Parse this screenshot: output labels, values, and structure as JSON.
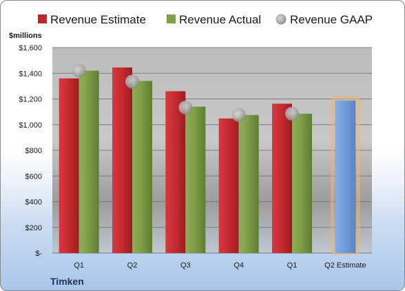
{
  "company": "Timken",
  "colors": {
    "estimate": "#c0272d",
    "actual": "#7fa04a",
    "gaap": "#a8a8a8",
    "q2_estimate": "#6f9bd8",
    "q2_estimate_glow": "#f6b26b"
  },
  "chart_data": {
    "type": "bar",
    "ylabel": "$millions",
    "ylim": [
      0,
      1600
    ],
    "yticks": [
      0,
      200,
      400,
      600,
      800,
      1000,
      1200,
      1400,
      1600
    ],
    "ytick_labels": [
      "$-",
      "$200",
      "$400",
      "$600",
      "$800",
      "$1,000",
      "$1,200",
      "$1,400",
      "$1,600"
    ],
    "categories": [
      "Q1",
      "Q2",
      "Q3",
      "Q4",
      "Q1",
      "Q2 Estimate"
    ],
    "legend_position": "top",
    "series": [
      {
        "name": "Revenue Estimate",
        "values": [
          1360,
          1445,
          1260,
          1048,
          1163,
          null
        ]
      },
      {
        "name": "Revenue Actual",
        "values": [
          1420,
          1340,
          1140,
          1075,
          1085,
          null
        ]
      },
      {
        "name": "Revenue GAAP",
        "values": [
          1420,
          1335,
          1133,
          1075,
          1085,
          null
        ]
      },
      {
        "name": "Q2 Estimate",
        "values": [
          null,
          null,
          null,
          null,
          null,
          1188
        ]
      }
    ]
  }
}
